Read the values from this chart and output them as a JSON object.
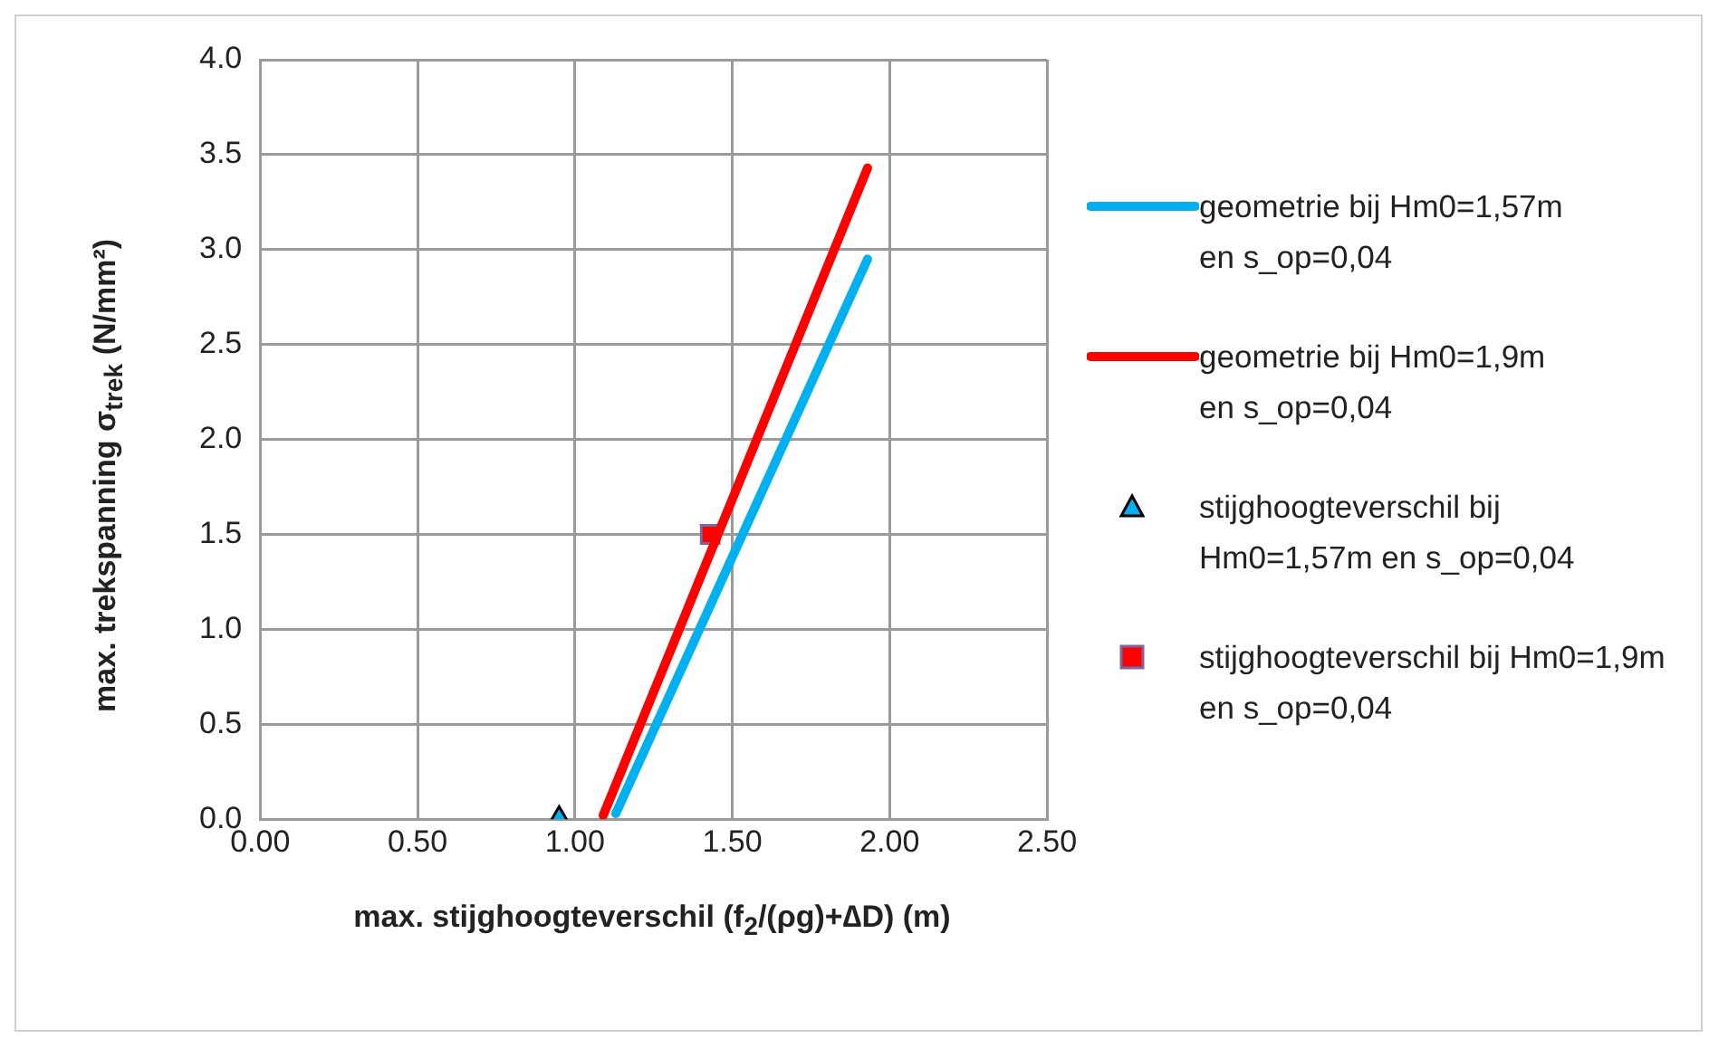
{
  "chart_data": {
    "type": "line",
    "xlabel": "max. stijghoogteverschil (f$_{2}$/(ρg)+∆D)  (m)",
    "ylabel": "max. trekspanning σ$_{trek}$  (N/mm²)",
    "xlim": [
      0,
      2.5
    ],
    "xticks": [
      {
        "value": 0,
        "label": "0.00"
      },
      {
        "value": 0.5,
        "label": "0.50"
      },
      {
        "value": 1,
        "label": "1.00"
      },
      {
        "value": 1.5,
        "label": "1.50"
      },
      {
        "value": 2,
        "label": "2.00"
      },
      {
        "value": 2.5,
        "label": "2.50"
      }
    ],
    "ylim": [
      0,
      4
    ],
    "yticks": [
      {
        "value": 0,
        "label": "0.0"
      },
      {
        "value": 0.5,
        "label": "0.5"
      },
      {
        "value": 1,
        "label": "1.0"
      },
      {
        "value": 1.5,
        "label": "1.5"
      },
      {
        "value": 2,
        "label": "2.0"
      },
      {
        "value": 2.5,
        "label": "2.5"
      },
      {
        "value": 3,
        "label": "3.0"
      },
      {
        "value": 3.5,
        "label": "3.5"
      },
      {
        "value": 4,
        "label": "4.0"
      }
    ],
    "grid": true,
    "legend": "right",
    "series": [
      {
        "name": "geometrie bij Hm0=1,57m en s_op=0,04",
        "color": "#00b0f0",
        "x": [
          1.13,
          1.93
        ],
        "values": [
          0.03,
          2.95
        ],
        "marker": "none"
      },
      {
        "name": "geometrie bij Hm0=1,9m en s_op=0,04",
        "color": "#ff0000",
        "x": [
          1.09,
          1.93
        ],
        "values": [
          0.02,
          3.43
        ],
        "marker": "none"
      },
      {
        "type": "scatter",
        "name": "stijghoogteverschil bij Hm0=1,57m en s_op=0,04",
        "color": "#00b0f0",
        "x": [
          0.95
        ],
        "values": [
          0
        ],
        "marker": "triangle"
      },
      {
        "type": "scatter",
        "name": "stijghoogteverschil  bij Hm0=1,9m en s_op=0,04",
        "color": "#ff0000",
        "x": [
          1.43
        ],
        "values": [
          1.5
        ],
        "marker": "square"
      }
    ]
  }
}
